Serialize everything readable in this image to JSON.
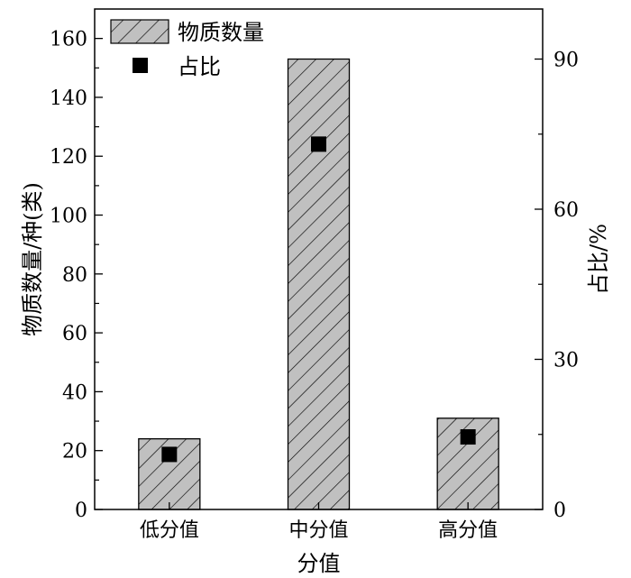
{
  "chart_data": {
    "type": "bar",
    "categories": [
      "低分值",
      "中分值",
      "高分值"
    ],
    "series": [
      {
        "name": "物质数量",
        "type": "bar",
        "axis": "left",
        "values": [
          24,
          153,
          31
        ]
      },
      {
        "name": "占比",
        "type": "scatter",
        "axis": "right",
        "values": [
          11,
          73,
          14.5
        ]
      }
    ],
    "xlabel": "分值",
    "ylabel": "物质数量/种(类)",
    "y2label": "占比/%",
    "ylim": [
      0,
      170
    ],
    "yticks": [
      0,
      20,
      40,
      60,
      80,
      100,
      120,
      140,
      160
    ],
    "y2lim": [
      0,
      100
    ],
    "y2ticks": [
      0,
      30,
      60,
      90
    ],
    "legend_position": "top-left",
    "bar_fill": "#c0c0c0",
    "bar_pattern": "diagonal-hatch",
    "marker_color": "#000000",
    "grid": false
  }
}
